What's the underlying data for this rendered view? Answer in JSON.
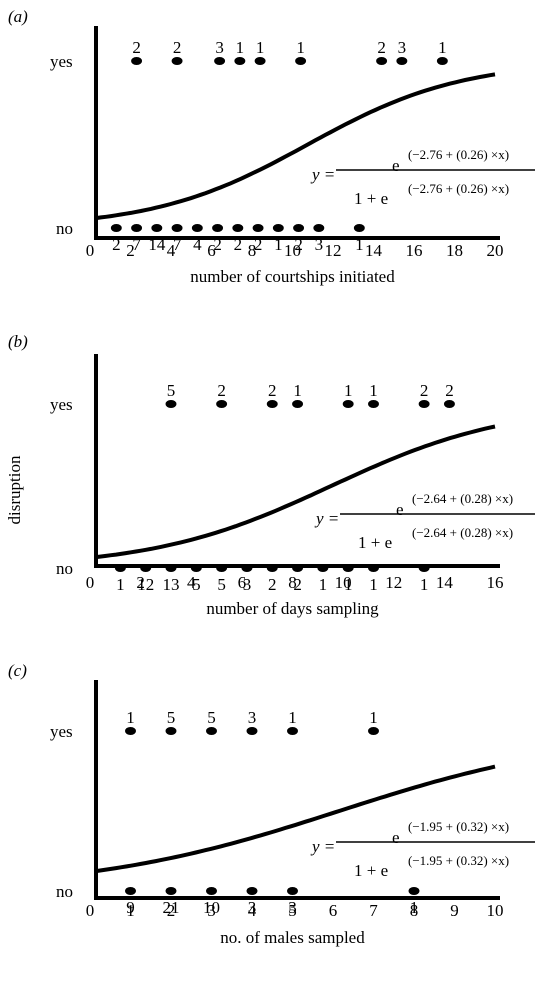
{
  "y_axis_label": "disruption",
  "chart_data": [
    {
      "type": "scatter",
      "panel_label": "(a)",
      "xlabel": "number of courtships initiated",
      "xlim": [
        0,
        20
      ],
      "x_ticks": [
        0,
        2,
        4,
        6,
        8,
        10,
        12,
        14,
        16,
        18,
        20
      ],
      "y_categories": [
        "no",
        "yes"
      ],
      "series": [
        {
          "name": "yes",
          "x": [
            2.3,
            4.3,
            6.4,
            7.4,
            8.4,
            10.4,
            14.4,
            15.4,
            17.4
          ],
          "counts": [
            2,
            2,
            3,
            1,
            1,
            1,
            2,
            3,
            1
          ]
        },
        {
          "name": "no",
          "x": [
            1.3,
            2.3,
            3.3,
            4.3,
            5.3,
            6.3,
            7.3,
            8.3,
            9.3,
            10.3,
            11.3,
            13.3
          ],
          "counts": [
            2,
            7,
            14,
            7,
            4,
            2,
            2,
            2,
            1,
            2,
            3,
            1
          ]
        }
      ],
      "logistic": {
        "intercept": -2.76,
        "slope": 0.26
      },
      "equation": {
        "lhs": "y =",
        "numerator_base": "e",
        "numerator_exp": "(−2.76 + (0.26) ×x)",
        "denominator_base": "1 + e",
        "denominator_exp": "(−2.76 + (0.26) ×x)"
      }
    },
    {
      "type": "scatter",
      "panel_label": "(b)",
      "xlabel": "number of days sampling",
      "xlim": [
        0,
        16
      ],
      "x_ticks": [
        0,
        2,
        4,
        6,
        8,
        10,
        12,
        14,
        16
      ],
      "y_categories": [
        "no",
        "yes"
      ],
      "series": [
        {
          "name": "yes",
          "x": [
            3.2,
            5.2,
            7.2,
            8.2,
            10.2,
            11.2,
            13.2,
            14.2
          ],
          "counts": [
            5,
            2,
            2,
            1,
            1,
            1,
            2,
            2
          ]
        },
        {
          "name": "no",
          "x": [
            1.2,
            2.2,
            3.2,
            4.2,
            5.2,
            6.2,
            7.2,
            8.2,
            9.2,
            10.2,
            11.2,
            13.2
          ],
          "counts": [
            1,
            12,
            13,
            5,
            5,
            3,
            2,
            2,
            1,
            1,
            1,
            1
          ]
        }
      ],
      "logistic": {
        "intercept": -2.64,
        "slope": 0.28
      },
      "equation": {
        "lhs": "y =",
        "numerator_base": "e",
        "numerator_exp": "(−2.64 + (0.28) ×x)",
        "denominator_base": "1 + e",
        "denominator_exp": "(−2.64 + (0.28) ×x)"
      }
    },
    {
      "type": "scatter",
      "panel_label": "(c)",
      "xlabel": "no. of males sampled",
      "xlim": [
        0,
        10
      ],
      "x_ticks": [
        0,
        1,
        2,
        3,
        4,
        5,
        6,
        7,
        8,
        9,
        10
      ],
      "y_categories": [
        "no",
        "yes"
      ],
      "series": [
        {
          "name": "yes",
          "x": [
            1,
            2,
            3,
            4,
            5,
            7
          ],
          "counts": [
            1,
            5,
            5,
            3,
            1,
            1
          ]
        },
        {
          "name": "no",
          "x": [
            1,
            2,
            3,
            4,
            5,
            8
          ],
          "counts": [
            9,
            21,
            10,
            3,
            3,
            1
          ]
        }
      ],
      "logistic": {
        "intercept": -1.95,
        "slope": 0.32
      },
      "equation": {
        "lhs": "y =",
        "numerator_base": "e",
        "numerator_exp": "(−1.95 + (0.32) ×x)",
        "denominator_base": "1 + e",
        "denominator_exp": "(−1.95 + (0.32) ×x)"
      }
    }
  ]
}
